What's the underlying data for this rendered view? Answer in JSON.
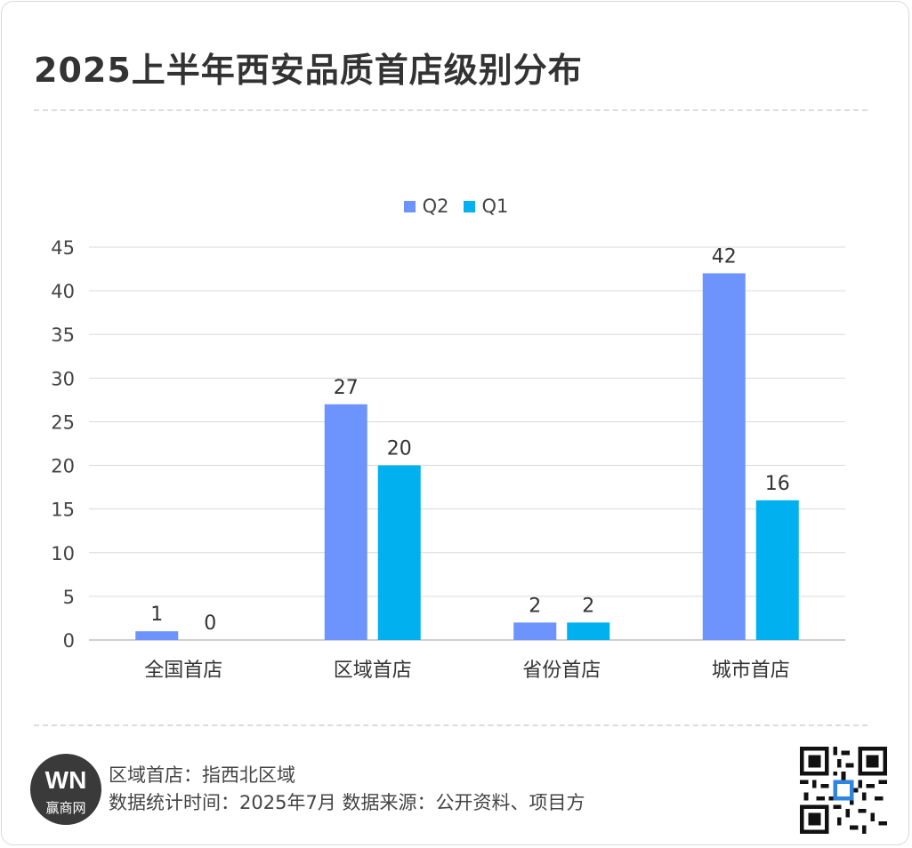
{
  "title": "2025上半年西安品质首店级别分布",
  "legend": [
    {
      "name": "Q2",
      "color": "#6d94fc"
    },
    {
      "name": "Q1",
      "color": "#00b0ef"
    }
  ],
  "chart_data": {
    "type": "bar",
    "categories": [
      "全国首店",
      "区域首店",
      "省份首店",
      "城市首店"
    ],
    "series": [
      {
        "name": "Q2",
        "values": [
          1,
          27,
          2,
          42
        ],
        "color": "#6d94fc"
      },
      {
        "name": "Q1",
        "values": [
          0,
          20,
          2,
          16
        ],
        "color": "#00b0ef"
      }
    ],
    "ylim": [
      0,
      45
    ],
    "yticks": [
      0,
      5,
      10,
      15,
      20,
      25,
      30,
      35,
      40,
      45
    ],
    "grid": true,
    "legend_position": "top-center",
    "title": "",
    "xlabel": "",
    "ylabel": ""
  },
  "footer": {
    "note": "区域首店：指西北区域",
    "source": "数据统计时间：2025年7月 数据来源：公开资料、项目方",
    "logo_mark": "WN",
    "logo_text": "赢商网"
  }
}
